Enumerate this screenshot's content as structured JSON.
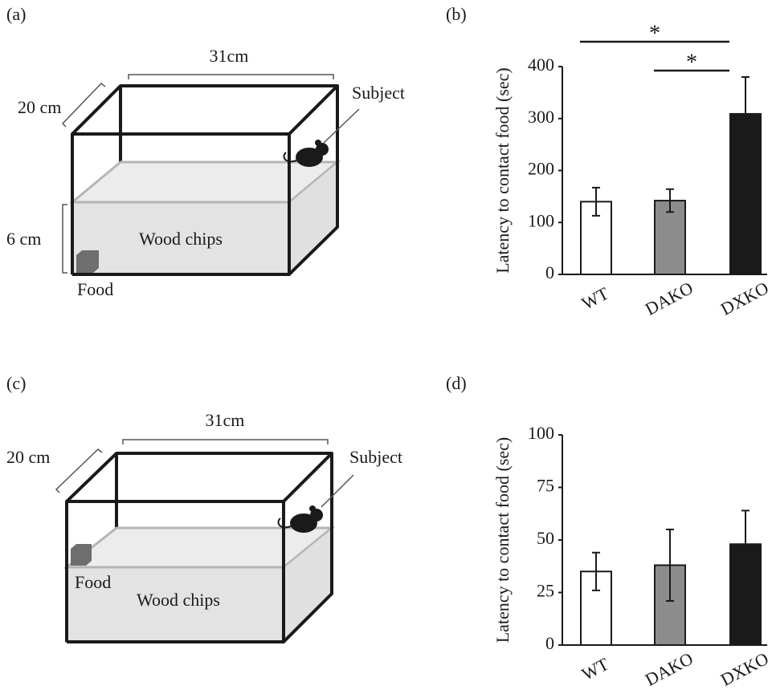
{
  "diagrams": [
    {
      "label": "(a)",
      "width": "31cm",
      "depth": "20 cm",
      "height": "6 cm",
      "substrate": "Wood chips",
      "food": "Food",
      "subject": "Subject"
    },
    {
      "label": "(c)",
      "width": "31cm",
      "depth": "20 cm",
      "substrate": "Wood chips",
      "food": "Food",
      "subject": "Subject"
    }
  ],
  "chart_data": [
    {
      "type": "bar",
      "panel_label": "(b)",
      "ylabel": "Latency to contact food (sec)",
      "categories": [
        "WT",
        "DAKO",
        "DXKO"
      ],
      "values": [
        140,
        142,
        309
      ],
      "errors": [
        27,
        22,
        71
      ],
      "colors": [
        "#ffffff",
        "#8c8c8c",
        "#1a1a1a"
      ],
      "ylim": [
        0,
        400
      ],
      "yticks": [
        0,
        100,
        200,
        300,
        400
      ],
      "significance": [
        {
          "between": [
            "WT",
            "DXKO"
          ],
          "label": "*"
        },
        {
          "between": [
            "DAKO",
            "DXKO"
          ],
          "label": "*"
        }
      ]
    },
    {
      "type": "bar",
      "panel_label": "(d)",
      "ylabel": "Latency to contact food (sec)",
      "categories": [
        "WT",
        "DAKO",
        "DXKO"
      ],
      "values": [
        35,
        38,
        48
      ],
      "errors": [
        9,
        17,
        16
      ],
      "colors": [
        "#ffffff",
        "#8c8c8c",
        "#1a1a1a"
      ],
      "ylim": [
        0,
        100
      ],
      "yticks": [
        0,
        25,
        50,
        75,
        100
      ]
    }
  ]
}
